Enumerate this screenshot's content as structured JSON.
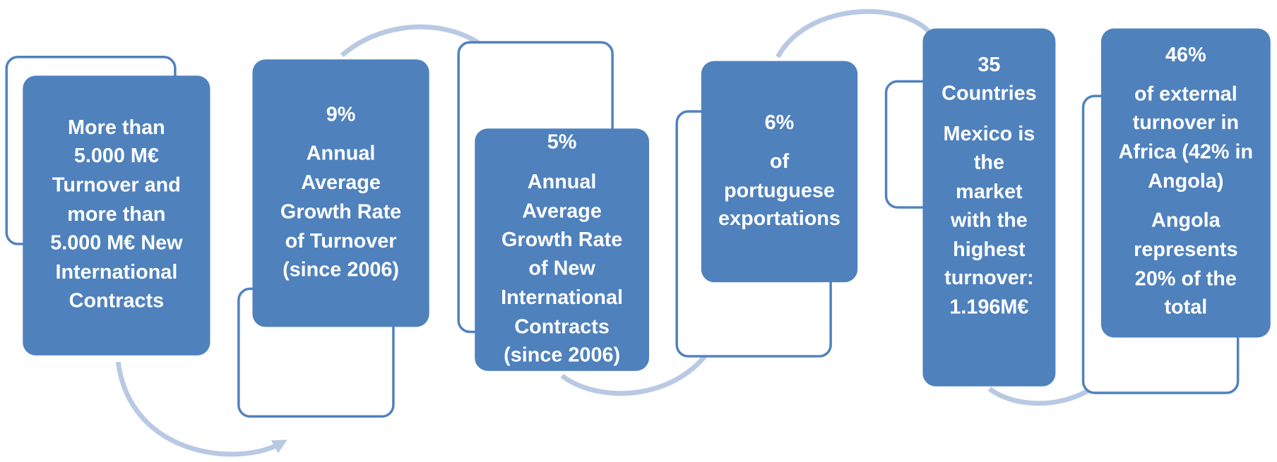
{
  "boxes": [
    {
      "lines": [
        "More than",
        "5.000 M€",
        "Turnover and",
        "more than",
        "5.000 M€ New",
        "International",
        "Contracts"
      ]
    },
    {
      "lines": [
        "9%",
        "Annual",
        "Average",
        "Growth Rate",
        "of Turnover",
        "(since 2006)"
      ]
    },
    {
      "lines": [
        "5%",
        "Annual",
        "Average",
        "Growth Rate",
        "of New",
        "International",
        "Contracts",
        "(since 2006)"
      ]
    },
    {
      "lines": [
        "6%",
        "of",
        "portuguese",
        "exportations"
      ]
    },
    {
      "lines": [
        "35",
        "Countries",
        "Mexico is",
        "the",
        "market",
        "with the",
        "highest",
        "turnover:",
        "1.196M€"
      ]
    },
    {
      "lines": [
        "46%",
        "of external",
        "turnover in",
        "Africa (42% in",
        "Angola)",
        "Angola",
        "represents",
        "20% of  the",
        "total"
      ]
    }
  ]
}
